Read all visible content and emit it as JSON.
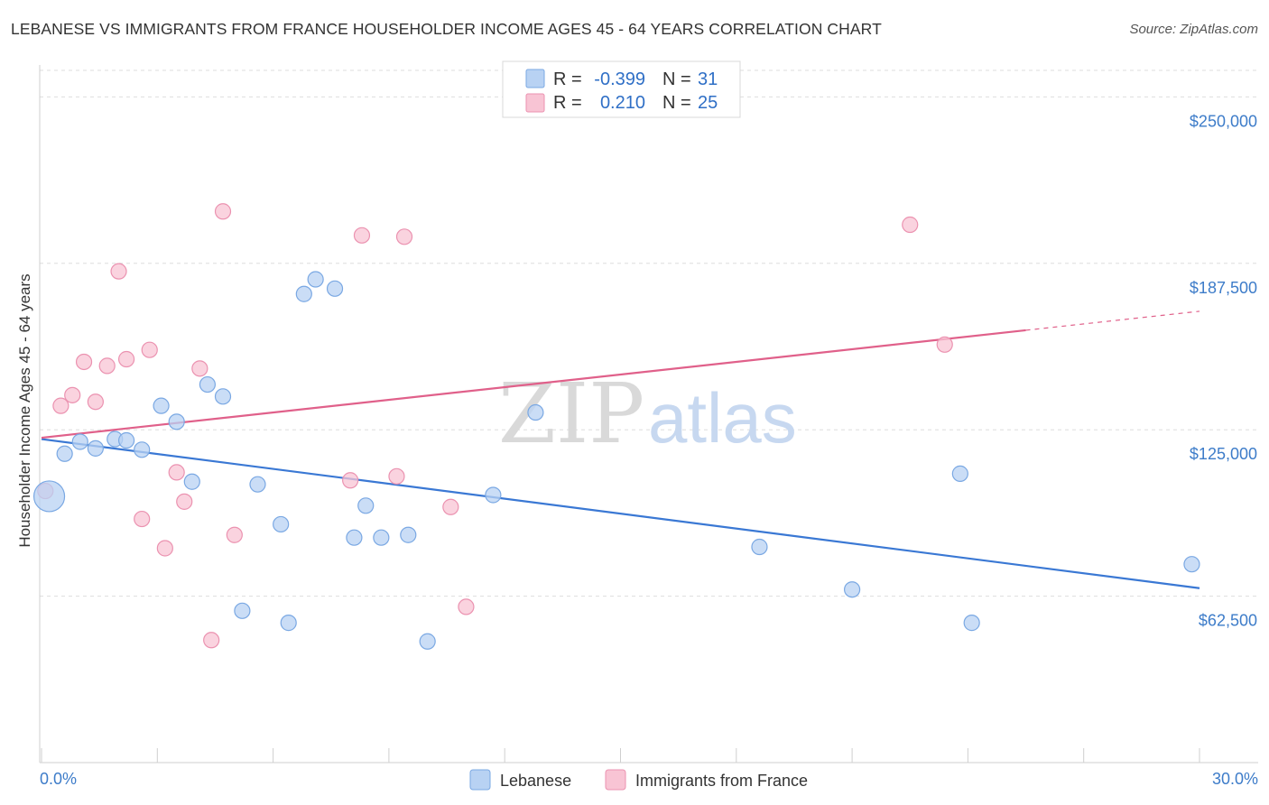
{
  "title": "LEBANESE VS IMMIGRANTS FROM FRANCE HOUSEHOLDER INCOME AGES 45 - 64 YEARS CORRELATION CHART",
  "source": "Source: ZipAtlas.com",
  "colors": {
    "blue": "#3a78d4",
    "blue_fill": "#b8d2f3",
    "pink": "#e0608a",
    "pink_fill": "#f8c4d4",
    "tick": "#3d7cc9",
    "grid": "#dddddd"
  },
  "legend_box": {
    "rows": [
      {
        "r_label": "R =",
        "r_value": "-0.399",
        "n_label": "N =",
        "n_value": "31",
        "series": "Lebanese"
      },
      {
        "r_label": "R =",
        "r_value": "0.210",
        "n_label": "N =",
        "n_value": "25",
        "series": "Immigrants from France"
      }
    ]
  },
  "watermark": {
    "zip": "ZIP",
    "atlas": "atlas"
  },
  "chart_data": {
    "type": "scatter",
    "title": "LEBANESE VS IMMIGRANTS FROM FRANCE HOUSEHOLDER INCOME AGES 45 - 64 YEARS CORRELATION CHART",
    "xlabel": "",
    "ylabel": "Householder Income Ages 45 - 64 years",
    "xlim": [
      0,
      30
    ],
    "ylim": [
      0,
      262000
    ],
    "x_tick_labels": [
      "0.0%",
      "30.0%"
    ],
    "y_ticks": [
      62500,
      125000,
      187500,
      250000
    ],
    "y_tick_labels": [
      "$62,500",
      "$125,000",
      "$187,500",
      "$250,000"
    ],
    "grid": true,
    "legend": [
      "Lebanese",
      "Immigrants from France"
    ],
    "series": [
      {
        "name": "Lebanese",
        "color": "#3a78d4",
        "r": -0.399,
        "n": 31,
        "trend": {
          "x": [
            0,
            30
          ],
          "y": [
            121500,
            65500
          ],
          "dashed_from": null
        },
        "points": [
          {
            "x": 0.2,
            "y": 100000,
            "big": true
          },
          {
            "x": 0.6,
            "y": 116000
          },
          {
            "x": 1.0,
            "y": 120500
          },
          {
            "x": 1.4,
            "y": 118000
          },
          {
            "x": 1.9,
            "y": 121500
          },
          {
            "x": 2.2,
            "y": 121000
          },
          {
            "x": 2.6,
            "y": 117500
          },
          {
            "x": 3.1,
            "y": 134000
          },
          {
            "x": 3.5,
            "y": 128000
          },
          {
            "x": 3.9,
            "y": 105500
          },
          {
            "x": 4.3,
            "y": 142000
          },
          {
            "x": 4.7,
            "y": 137500
          },
          {
            "x": 5.2,
            "y": 57000
          },
          {
            "x": 5.6,
            "y": 104500
          },
          {
            "x": 6.2,
            "y": 89500
          },
          {
            "x": 6.4,
            "y": 52500
          },
          {
            "x": 6.8,
            "y": 176000
          },
          {
            "x": 7.1,
            "y": 181500
          },
          {
            "x": 7.6,
            "y": 178000
          },
          {
            "x": 8.1,
            "y": 84500
          },
          {
            "x": 8.4,
            "y": 96500
          },
          {
            "x": 8.8,
            "y": 84500
          },
          {
            "x": 9.5,
            "y": 85500
          },
          {
            "x": 10.0,
            "y": 45500
          },
          {
            "x": 11.7,
            "y": 100500
          },
          {
            "x": 12.8,
            "y": 131500
          },
          {
            "x": 18.6,
            "y": 81000
          },
          {
            "x": 21.0,
            "y": 65000
          },
          {
            "x": 23.8,
            "y": 108500
          },
          {
            "x": 24.1,
            "y": 52500
          },
          {
            "x": 29.8,
            "y": 74500
          }
        ]
      },
      {
        "name": "Immigrants from France",
        "color": "#e0608a",
        "r": 0.21,
        "n": 25,
        "trend": {
          "x": [
            0,
            30
          ],
          "y": [
            122000,
            169500
          ],
          "dashed_from": 25.5
        },
        "points": [
          {
            "x": 0.1,
            "y": 102000
          },
          {
            "x": 0.5,
            "y": 134000
          },
          {
            "x": 0.8,
            "y": 138000
          },
          {
            "x": 1.1,
            "y": 150500
          },
          {
            "x": 1.4,
            "y": 135500
          },
          {
            "x": 1.7,
            "y": 149000
          },
          {
            "x": 2.0,
            "y": 184500
          },
          {
            "x": 2.2,
            "y": 151500
          },
          {
            "x": 2.6,
            "y": 91500
          },
          {
            "x": 2.8,
            "y": 155000
          },
          {
            "x": 3.2,
            "y": 80500
          },
          {
            "x": 3.5,
            "y": 109000
          },
          {
            "x": 3.7,
            "y": 98000
          },
          {
            "x": 4.1,
            "y": 148000
          },
          {
            "x": 4.4,
            "y": 46000
          },
          {
            "x": 4.7,
            "y": 207000
          },
          {
            "x": 5.0,
            "y": 85500
          },
          {
            "x": 8.0,
            "y": 106000
          },
          {
            "x": 8.3,
            "y": 198000
          },
          {
            "x": 9.2,
            "y": 107500
          },
          {
            "x": 9.4,
            "y": 197500
          },
          {
            "x": 10.6,
            "y": 96000
          },
          {
            "x": 11.0,
            "y": 58500
          },
          {
            "x": 22.5,
            "y": 202000
          },
          {
            "x": 23.4,
            "y": 157000
          }
        ]
      }
    ]
  }
}
